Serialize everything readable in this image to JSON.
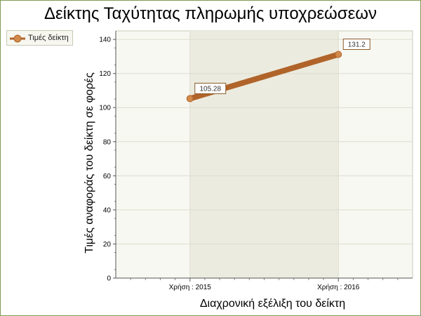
{
  "colors": {
    "frame": "#7e9a55",
    "series": "#b0642a",
    "series_marker": "#d28a4b",
    "plot_bg": "#f8f8f2",
    "band_bg": "#ecebdf",
    "grid": "#dcdccf"
  },
  "legend": {
    "icon": "line-circle-marker-icon"
  },
  "chart_data": {
    "type": "line",
    "title": "Δείκτης Ταχύτητας πληρωμής υποχρεώσεων",
    "xlabel": "Διαχρονική εξέλιξη του δείκτη",
    "ylabel": "Τιμές αναφοράς του δείκτη σε φορές",
    "categories": [
      "Χρήση : 2015",
      "Χρήση : 2016"
    ],
    "series": [
      {
        "name": "Τιμές δείκτη",
        "values": [
          105.28,
          131.2
        ],
        "labels": [
          "105.28",
          "131.2"
        ]
      }
    ],
    "ylim": [
      0,
      145
    ],
    "yticks": [
      0,
      20,
      40,
      60,
      80,
      100,
      120,
      140
    ],
    "grid": true,
    "legend_position": "top-left"
  }
}
